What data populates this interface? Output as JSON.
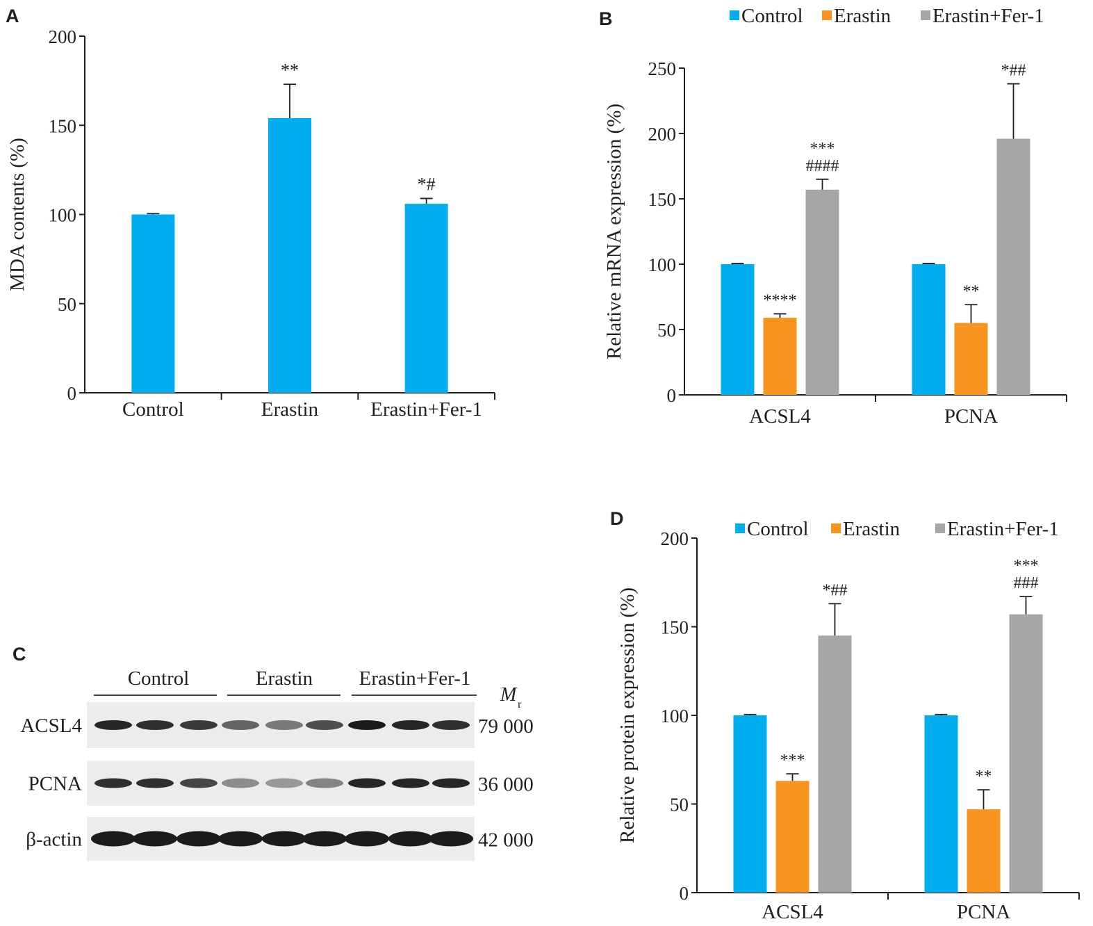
{
  "panels": {
    "A": "A",
    "B": "B",
    "C": "C",
    "D": "D"
  },
  "colors": {
    "control": "#00aeef",
    "erastin": "#f7941d",
    "erastin_fer1": "#a6a6a6",
    "axis": "#231f20",
    "blot_bg": "#ececec",
    "band": "#1b1b1b"
  },
  "chart_data": [
    {
      "id": "A",
      "type": "bar",
      "title": "",
      "xlabel": "",
      "ylabel": "MDA contents (%)",
      "ylim": [
        0,
        200
      ],
      "yticks": [
        0,
        50,
        100,
        150,
        200
      ],
      "categories": [
        "Control",
        "Erastin",
        "Erastin+Fer-1"
      ],
      "series": [
        {
          "values": [
            100,
            154,
            106
          ],
          "errors": [
            0.5,
            19,
            3
          ],
          "annotations": [
            "",
            "**",
            "*#"
          ]
        }
      ]
    },
    {
      "id": "B",
      "type": "bar",
      "title": "",
      "xlabel": "",
      "ylabel": "Relative mRNA expression (%)",
      "ylim": [
        0,
        250
      ],
      "yticks": [
        0,
        50,
        100,
        150,
        200,
        250
      ],
      "legend": "top",
      "categories": [
        "ACSL4",
        "PCNA"
      ],
      "series": [
        {
          "name": "Control",
          "values": [
            100,
            100
          ],
          "errors": [
            0.5,
            0.5
          ],
          "annotations": [
            "",
            ""
          ]
        },
        {
          "name": "Erastin",
          "values": [
            59,
            55
          ],
          "errors": [
            3,
            14
          ],
          "annotations": [
            "****",
            "**"
          ]
        },
        {
          "name": "Erastin+Fer-1",
          "values": [
            157,
            196
          ],
          "errors": [
            8,
            42
          ],
          "annotations": [
            "***\n####",
            "*##"
          ]
        }
      ]
    },
    {
      "id": "C",
      "type": "table",
      "title": "",
      "groups": [
        "Control",
        "Erastin",
        "Erastin+Fer-1"
      ],
      "mr_label": "M",
      "mr_sub": "r",
      "rows": [
        {
          "protein": "ACSL4",
          "mr": "79 000",
          "intensity": [
            0.95,
            0.9,
            0.85,
            0.65,
            0.55,
            0.75,
            1.0,
            0.95,
            0.9
          ]
        },
        {
          "protein": "PCNA",
          "mr": "36 000",
          "intensity": [
            0.9,
            0.9,
            0.8,
            0.45,
            0.4,
            0.5,
            0.95,
            0.95,
            0.95
          ]
        },
        {
          "protein": "β-actin",
          "mr": "42 000",
          "intensity": [
            1.0,
            1.0,
            1.0,
            1.0,
            1.0,
            1.0,
            1.0,
            1.0,
            1.0
          ]
        }
      ]
    },
    {
      "id": "D",
      "type": "bar",
      "title": "",
      "xlabel": "",
      "ylabel": "Relative protein expression (%)",
      "ylim": [
        0,
        200
      ],
      "yticks": [
        0,
        50,
        100,
        150,
        200
      ],
      "legend": "top",
      "categories": [
        "ACSL4",
        "PCNA"
      ],
      "series": [
        {
          "name": "Control",
          "values": [
            100,
            100
          ],
          "errors": [
            0.5,
            0.5
          ],
          "annotations": [
            "",
            ""
          ]
        },
        {
          "name": "Erastin",
          "values": [
            63,
            47
          ],
          "errors": [
            4,
            11
          ],
          "annotations": [
            "***",
            "**"
          ]
        },
        {
          "name": "Erastin+Fer-1",
          "values": [
            145,
            157
          ],
          "errors": [
            18,
            10
          ],
          "annotations": [
            "*##",
            "***\n###"
          ]
        }
      ]
    }
  ]
}
